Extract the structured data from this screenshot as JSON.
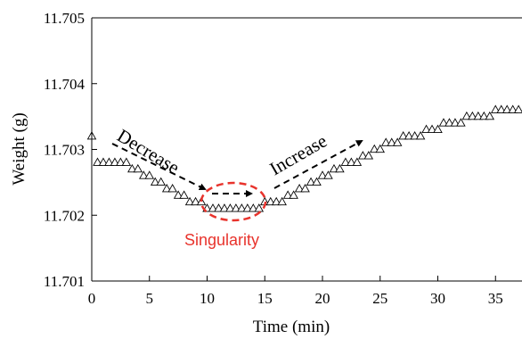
{
  "chart_data": {
    "type": "scatter",
    "xlabel": "Time (min)",
    "ylabel": "Weight (g)",
    "xlim": [
      0,
      37
    ],
    "ylim": [
      11.701,
      11.705
    ],
    "x_ticks": [
      0,
      5,
      10,
      15,
      20,
      25,
      30,
      35
    ],
    "y_ticks": [
      11.701,
      11.702,
      11.703,
      11.704,
      11.705
    ],
    "y_tick_labels": [
      "11.701",
      "11.702",
      "11.703",
      "11.704",
      "11.705"
    ],
    "grid": false,
    "marker": "open-triangle",
    "series": [
      {
        "marker_color": "#000000",
        "x": [
          0,
          0.5,
          1,
          1.5,
          2,
          2.5,
          3,
          3.5,
          4,
          4.5,
          5,
          5.5,
          6,
          6.5,
          7,
          7.5,
          8,
          8.5,
          9,
          9.5,
          10,
          10.5,
          11,
          11.5,
          12,
          12.5,
          13,
          13.5,
          14,
          14.5,
          15,
          15.5,
          16,
          16.5,
          17,
          17.5,
          18,
          18.5,
          19,
          19.5,
          20,
          20.5,
          21,
          21.5,
          22,
          22.5,
          23,
          23.5,
          24,
          24.5,
          25,
          25.5,
          26,
          26.5,
          27,
          27.5,
          28,
          28.5,
          29,
          29.5,
          30,
          30.5,
          31,
          31.5,
          32,
          32.5,
          33,
          33.5,
          34,
          34.5,
          35,
          35.5,
          36,
          36.5,
          37
        ],
        "y": [
          11.7032,
          11.7028,
          11.7028,
          11.7028,
          11.7028,
          11.7028,
          11.7028,
          11.7027,
          11.7027,
          11.7026,
          11.7026,
          11.7025,
          11.7025,
          11.7024,
          11.7024,
          11.7023,
          11.7023,
          11.7022,
          11.7022,
          11.7022,
          11.7021,
          11.7021,
          11.7021,
          11.7021,
          11.7021,
          11.7021,
          11.7021,
          11.7021,
          11.7021,
          11.7021,
          11.7022,
          11.7022,
          11.7022,
          11.7022,
          11.7023,
          11.7023,
          11.7024,
          11.7024,
          11.7025,
          11.7025,
          11.7026,
          11.7026,
          11.7027,
          11.7027,
          11.7028,
          11.7028,
          11.7028,
          11.7029,
          11.7029,
          11.703,
          11.703,
          11.7031,
          11.7031,
          11.7031,
          11.7032,
          11.7032,
          11.7032,
          11.7032,
          11.7033,
          11.7033,
          11.7033,
          11.7034,
          11.7034,
          11.7034,
          11.7034,
          11.7035,
          11.7035,
          11.7035,
          11.7035,
          11.7035,
          11.7036,
          11.7036,
          11.7036,
          11.7036,
          11.7036
        ]
      }
    ],
    "annotations": [
      {
        "text": "Decrease",
        "color": "#000000"
      },
      {
        "text": "Increase",
        "color": "#000000"
      },
      {
        "text": "Singularity",
        "color": "#e8332c"
      }
    ]
  }
}
